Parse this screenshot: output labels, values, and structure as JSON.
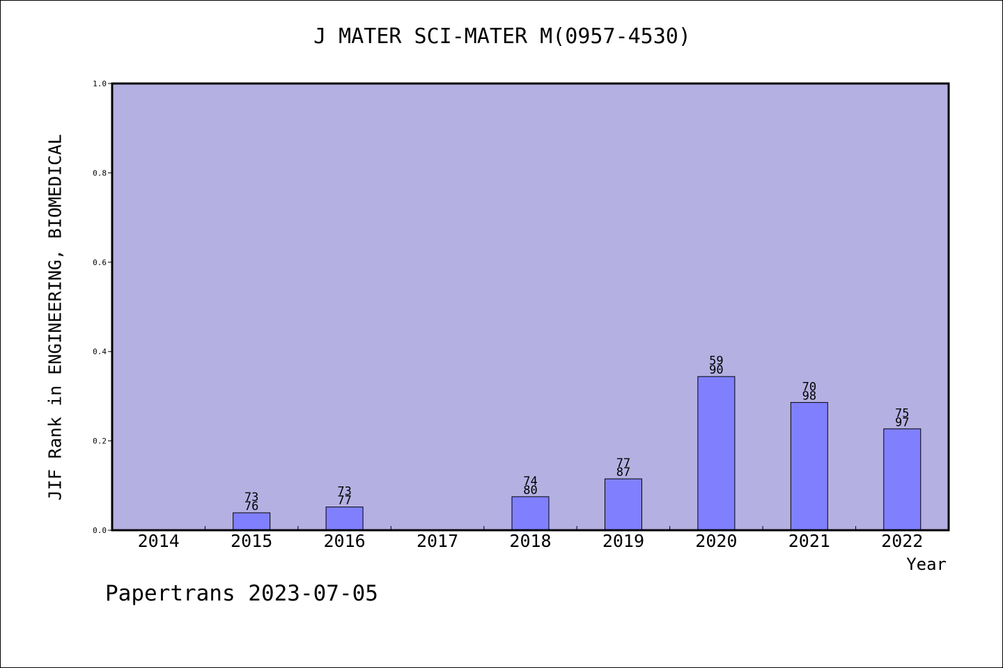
{
  "chart_data": {
    "type": "bar",
    "title": "J MATER SCI-MATER M(0957-4530)",
    "xlabel": "Year",
    "ylabel": "JIF Rank in ENGINEERING, BIOMEDICAL",
    "ylim": [
      0,
      1.0
    ],
    "yticks": [
      "0.0",
      "0.2",
      "0.4",
      "0.6",
      "0.8",
      "1.0"
    ],
    "grid": false,
    "categories": [
      "2014",
      "2015",
      "2016",
      "2017",
      "2018",
      "2019",
      "2020",
      "2021",
      "2022"
    ],
    "values": [
      null,
      0.039,
      0.052,
      null,
      0.075,
      0.115,
      0.344,
      0.286,
      0.227
    ],
    "bar_labels": [
      null,
      [
        "73",
        "76"
      ],
      [
        "73",
        "77"
      ],
      null,
      [
        "74",
        "80"
      ],
      [
        "77",
        "87"
      ],
      [
        "59",
        "90"
      ],
      [
        "70",
        "98"
      ],
      [
        "75",
        "97"
      ]
    ],
    "colors": {
      "plot_background": "#b5b0e2",
      "bar": "#8080ff",
      "axis": "#000000"
    }
  },
  "footer": {
    "credit": "Papertrans 2023-07-05"
  }
}
